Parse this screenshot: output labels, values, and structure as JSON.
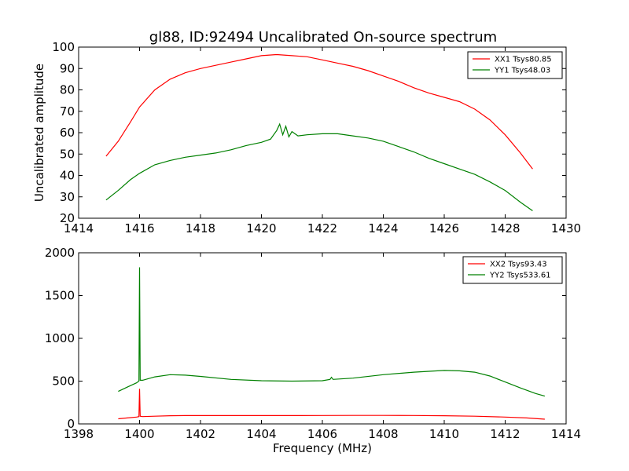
{
  "figure": {
    "title": "gl88, ID:92494 Uncalibrated On-source spectrum"
  },
  "chart_data": [
    {
      "type": "line",
      "title": "gl88, ID:92494 Uncalibrated On-source spectrum",
      "xlabel": "",
      "ylabel": "Uncalibrated amplitude",
      "xlim": [
        1414,
        1430
      ],
      "ylim": [
        20,
        100
      ],
      "xticks": [
        1414,
        1416,
        1418,
        1420,
        1422,
        1424,
        1426,
        1428,
        1430
      ],
      "yticks": [
        20,
        30,
        40,
        50,
        60,
        70,
        80,
        90,
        100
      ],
      "grid": false,
      "legend_position": "upper right",
      "series": [
        {
          "name": "XX1 Tsys80.85",
          "color": "#ff0000",
          "x": [
            1414.9,
            1415.3,
            1415.7,
            1416.0,
            1416.5,
            1417.0,
            1417.5,
            1418.0,
            1418.5,
            1419.0,
            1419.5,
            1420.0,
            1420.5,
            1421.0,
            1421.5,
            1422.0,
            1422.5,
            1423.0,
            1423.5,
            1424.0,
            1424.5,
            1425.0,
            1425.5,
            1426.0,
            1426.5,
            1427.0,
            1427.5,
            1428.0,
            1428.5,
            1428.9
          ],
          "y": [
            49,
            56,
            65,
            72,
            80,
            85,
            88,
            90,
            91.5,
            93,
            94.5,
            96,
            96.5,
            96,
            95.5,
            94,
            92.5,
            91,
            89,
            86.5,
            84,
            81,
            78.5,
            76.5,
            74.5,
            71,
            66,
            59,
            50.5,
            43
          ]
        },
        {
          "name": "YY1 Tsys48.03",
          "color": "#008000",
          "x": [
            1414.9,
            1415.3,
            1415.7,
            1416.0,
            1416.5,
            1417.0,
            1417.5,
            1418.0,
            1418.5,
            1419.0,
            1419.5,
            1420.0,
            1420.3,
            1420.5,
            1420.6,
            1420.7,
            1420.8,
            1420.9,
            1421.0,
            1421.2,
            1421.5,
            1422.0,
            1422.5,
            1423.0,
            1423.5,
            1424.0,
            1424.5,
            1425.0,
            1425.5,
            1426.0,
            1426.5,
            1427.0,
            1427.5,
            1428.0,
            1428.5,
            1428.9
          ],
          "y": [
            28.5,
            33,
            38,
            41,
            45,
            47,
            48.5,
            49.5,
            50.5,
            52,
            54,
            55.5,
            57,
            61,
            64,
            59,
            63,
            58,
            60.5,
            58.5,
            59,
            59.5,
            59.5,
            58.5,
            57.5,
            56,
            53.5,
            51,
            48,
            45.5,
            43,
            40.5,
            37,
            33,
            27.5,
            23.5
          ]
        }
      ]
    },
    {
      "type": "line",
      "title": "",
      "xlabel": "Frequency (MHz)",
      "ylabel": "",
      "xlim": [
        1398,
        1414
      ],
      "ylim": [
        0,
        2000
      ],
      "xticks": [
        1398,
        1400,
        1402,
        1404,
        1406,
        1408,
        1410,
        1412,
        1414
      ],
      "yticks": [
        0,
        500,
        1000,
        1500,
        2000
      ],
      "grid": false,
      "legend_position": "upper right",
      "series": [
        {
          "name": "XX2 Tsys93.43",
          "color": "#ff0000",
          "x": [
            1399.3,
            1399.6,
            1399.9,
            1399.98,
            1400.0,
            1400.02,
            1400.1,
            1400.5,
            1401.0,
            1401.5,
            1402.0,
            1403.0,
            1404.0,
            1405.0,
            1406.0,
            1407.0,
            1408.0,
            1409.0,
            1410.0,
            1411.0,
            1412.0,
            1412.7,
            1413.3
          ],
          "y": [
            60,
            70,
            80,
            85,
            410,
            90,
            85,
            90,
            95,
            97,
            97,
            97,
            97,
            97,
            98,
            99,
            99,
            98,
            95,
            90,
            80,
            70,
            55
          ]
        },
        {
          "name": "YY2 Tsys533.61",
          "color": "#008000",
          "x": [
            1399.3,
            1399.6,
            1399.9,
            1399.98,
            1400.0,
            1400.02,
            1400.1,
            1400.5,
            1401.0,
            1401.5,
            1402.0,
            1403.0,
            1404.0,
            1405.0,
            1406.0,
            1406.25,
            1406.3,
            1406.35,
            1407.0,
            1408.0,
            1409.0,
            1410.0,
            1410.5,
            1411.0,
            1411.5,
            1412.0,
            1412.5,
            1413.0,
            1413.3
          ],
          "y": [
            380,
            430,
            480,
            500,
            1830,
            510,
            510,
            550,
            575,
            570,
            555,
            520,
            505,
            500,
            505,
            520,
            545,
            520,
            535,
            575,
            605,
            625,
            620,
            605,
            560,
            490,
            420,
            355,
            325
          ]
        }
      ]
    }
  ]
}
